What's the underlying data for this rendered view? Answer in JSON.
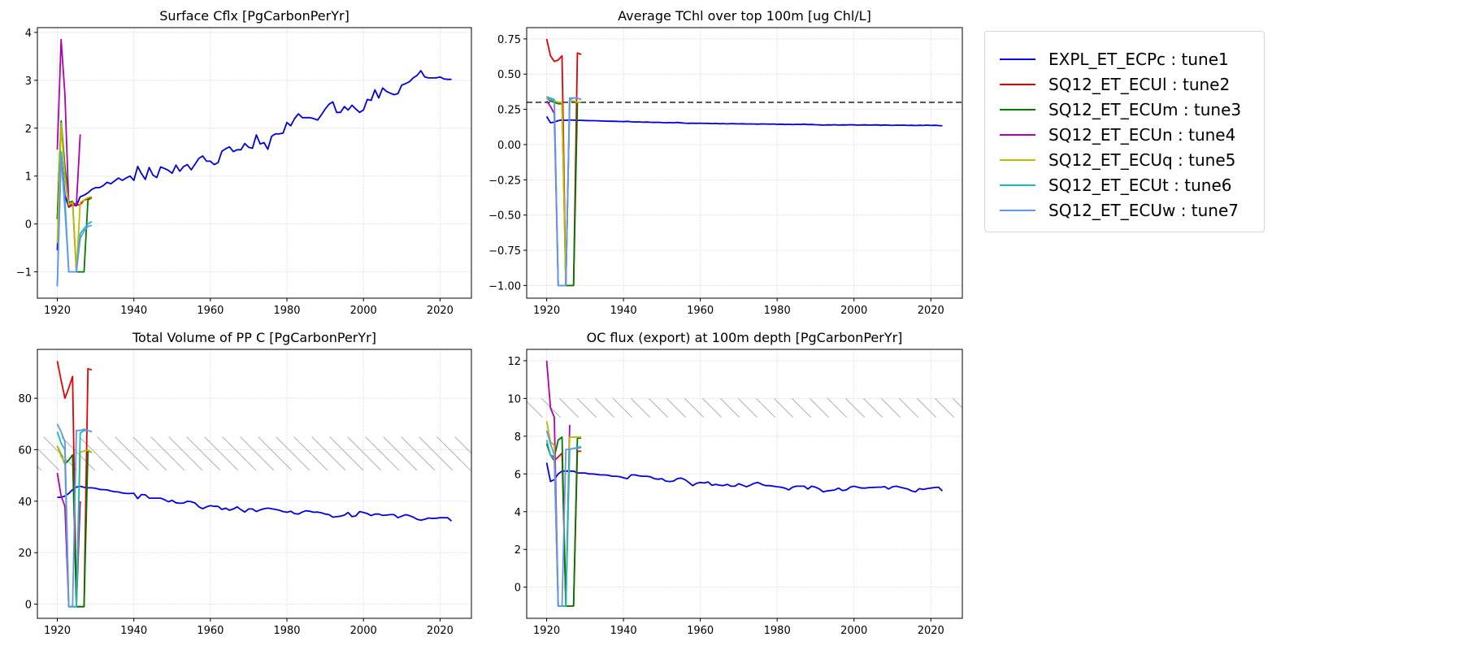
{
  "legend": {
    "items": [
      {
        "label": "EXPL_ET_ECPc : tune1",
        "color": "#0000e6"
      },
      {
        "label": "SQ12_ET_ECUl : tune2",
        "color": "#e60000"
      },
      {
        "label": "SQ12_ET_ECUm : tune3",
        "color": "#007a00"
      },
      {
        "label": "SQ12_ET_ECUn : tune4",
        "color": "#b000b0"
      },
      {
        "label": "SQ12_ET_ECUq : tune5",
        "color": "#bcbc00"
      },
      {
        "label": "SQ12_ET_ECUt : tune6",
        "color": "#17bcbc"
      },
      {
        "label": "SQ12_ET_ECUw : tune7",
        "color": "#6495ed"
      }
    ]
  },
  "chart_data": [
    {
      "type": "line",
      "title": "Surface Cflx [PgCarbonPerYr]",
      "xlim": [
        1914.8,
        2028.2
      ],
      "ylim": [
        -1.55,
        4.1
      ],
      "xticks": [
        1920,
        1940,
        1960,
        1980,
        2000,
        2020
      ],
      "xtick_labels": [
        "1920",
        "1940",
        "1960",
        "1980",
        "2000",
        "2020"
      ],
      "yticks": [
        -1,
        0,
        1,
        2,
        3,
        4
      ],
      "ytick_labels": [
        "−1",
        "0",
        "1",
        "2",
        "3",
        "4"
      ],
      "grid": true,
      "series": [
        {
          "name": "EXPL_ET_ECPc : tune1",
          "x_start": 1920,
          "values": [
            -0.55,
            1.5,
            0.6,
            0.35,
            0.4,
            0.38,
            0.57,
            0.6,
            0.65,
            0.72,
            0.76,
            0.76,
            0.8,
            0.87,
            0.84,
            0.9,
            0.96,
            0.91,
            0.96,
            1.0,
            0.91,
            1.2,
            1.05,
            0.93,
            1.18,
            1.02,
            0.97,
            1.19,
            1.16,
            1.12,
            1.06,
            1.23,
            1.1,
            1.2,
            1.24,
            1.13,
            1.25,
            1.37,
            1.42,
            1.31,
            1.31,
            1.24,
            1.28,
            1.52,
            1.57,
            1.61,
            1.51,
            1.55,
            1.55,
            1.68,
            1.6,
            1.58,
            1.86,
            1.67,
            1.7,
            1.56,
            1.83,
            1.88,
            1.88,
            1.9,
            2.12,
            2.05,
            2.2,
            2.3,
            2.22,
            2.22,
            2.22,
            2.2,
            2.17,
            2.28,
            2.4,
            2.5,
            2.55,
            2.33,
            2.33,
            2.45,
            2.38,
            2.48,
            2.4,
            2.33,
            2.38,
            2.6,
            2.58,
            2.8,
            2.63,
            2.84,
            2.77,
            2.73,
            2.7,
            2.72,
            2.9,
            2.93,
            2.97,
            3.05,
            3.1,
            3.2,
            3.07,
            3.05,
            3.05,
            3.05,
            3.07,
            3.03,
            3.02,
            3.02
          ]
        },
        {
          "name": "SQ12_ET_ECUl : tune2",
          "x_start": 1920,
          "values": [
            0.1,
            2.1,
            1.0,
            0.35,
            0.45,
            0.4,
            0.4,
            0.5,
            0.52,
            0.55
          ]
        },
        {
          "name": "SQ12_ET_ECUm : tune3",
          "x_start": 1920,
          "values": [
            0.1,
            2.15,
            1.2,
            0.45,
            0.47,
            -1,
            -1,
            -1,
            0.5,
            0.55
          ]
        },
        {
          "name": "SQ12_ET_ECUn : tune4",
          "x_start": 1920,
          "values": [
            1.55,
            3.85,
            2.7,
            0.4,
            0.38,
            0.4,
            1.87
          ]
        },
        {
          "name": "SQ12_ET_ECUq : tune5",
          "x_start": 1920,
          "values": [
            -0.4,
            2.1,
            1.0,
            0.4,
            0.45,
            -1,
            0.45,
            0.5,
            0.55,
            0.57
          ]
        },
        {
          "name": "SQ12_ET_ECUt : tune6",
          "x_start": 1920,
          "values": [
            -1.3,
            1.5,
            0.5,
            -1,
            -1,
            -1,
            -0.2,
            -0.1,
            0.0,
            0.05
          ]
        },
        {
          "name": "SQ12_ET_ECUw : tune7",
          "x_start": 1920,
          "values": [
            -1.3,
            1.4,
            0.3,
            -1,
            -1,
            -1,
            -0.3,
            -0.15,
            -0.05,
            -0.03
          ]
        }
      ]
    },
    {
      "type": "line",
      "title": "Average TChl over top 100m [ug Chl/L]",
      "xlim": [
        1914.8,
        2028.2
      ],
      "ylim": [
        -1.09,
        0.83
      ],
      "xticks": [
        1920,
        1940,
        1960,
        1980,
        2000,
        2020
      ],
      "xtick_labels": [
        "1920",
        "1940",
        "1960",
        "1980",
        "2000",
        "2020"
      ],
      "yticks": [
        -1.0,
        -0.75,
        -0.5,
        -0.25,
        0.0,
        0.25,
        0.5,
        0.75
      ],
      "ytick_labels": [
        "−1.00",
        "−0.75",
        "−0.50",
        "−0.25",
        "0.00",
        "0.25",
        "0.50",
        "0.75"
      ],
      "grid": true,
      "reference_line": {
        "y": 0.3,
        "style": "dashed"
      },
      "series": [
        {
          "name": "EXPL_ET_ECPc : tune1",
          "x_start": 1920,
          "values": [
            0.2,
            0.155,
            0.16,
            0.17,
            0.175,
            0.172,
            0.175,
            0.173,
            0.172,
            0.172,
            0.171,
            0.17,
            0.17,
            0.169,
            0.168,
            0.167,
            0.166,
            0.166,
            0.165,
            0.164,
            0.163,
            0.165,
            0.162,
            0.16,
            0.161,
            0.159,
            0.16,
            0.158,
            0.157,
            0.158,
            0.156,
            0.155,
            0.156,
            0.155,
            0.157,
            0.154,
            0.152,
            0.151,
            0.152,
            0.151,
            0.152,
            0.15,
            0.151,
            0.149,
            0.15,
            0.148,
            0.149,
            0.147,
            0.149,
            0.148,
            0.147,
            0.148,
            0.146,
            0.147,
            0.146,
            0.145,
            0.147,
            0.146,
            0.145,
            0.146,
            0.144,
            0.145,
            0.143,
            0.144,
            0.142,
            0.144,
            0.143,
            0.145,
            0.142,
            0.143,
            0.141,
            0.14,
            0.138,
            0.14,
            0.139,
            0.141,
            0.138,
            0.14,
            0.139,
            0.141,
            0.14,
            0.138,
            0.139,
            0.14,
            0.138,
            0.139,
            0.14,
            0.137,
            0.139,
            0.138,
            0.136,
            0.138,
            0.137,
            0.138,
            0.136,
            0.137,
            0.135,
            0.137,
            0.136,
            0.138,
            0.136,
            0.137,
            0.135,
            0.133
          ]
        },
        {
          "name": "SQ12_ET_ECUl : tune2",
          "x_start": 1920,
          "values": [
            0.75,
            0.63,
            0.59,
            0.6,
            0.63,
            -1,
            -1,
            -1,
            0.65,
            0.64
          ]
        },
        {
          "name": "SQ12_ET_ECUm : tune3",
          "x_start": 1920,
          "values": [
            0.33,
            0.31,
            0.3,
            0.29,
            0.29,
            -1,
            -1,
            -1,
            0.3,
            0.3
          ]
        },
        {
          "name": "SQ12_ET_ECUn : tune4",
          "x_start": 1920,
          "values": [
            0.31,
            0.27,
            0.22,
            -1,
            -1,
            -1,
            0.32
          ]
        },
        {
          "name": "SQ12_ET_ECUq : tune5",
          "x_start": 1920,
          "values": [
            0.33,
            0.32,
            0.31,
            0.3,
            0.3,
            -1,
            0.31,
            0.31,
            0.3,
            0.3
          ]
        },
        {
          "name": "SQ12_ET_ECUt : tune6",
          "x_start": 1920,
          "values": [
            0.34,
            0.33,
            0.32,
            -1,
            -1,
            -1,
            0.33,
            0.33,
            0.33,
            0.32
          ]
        },
        {
          "name": "SQ12_ET_ECUw : tune7",
          "x_start": 1920,
          "values": [
            0.34,
            0.32,
            0.31,
            -1,
            -1,
            -1,
            0.32,
            0.33,
            0.33,
            0.32
          ]
        }
      ]
    },
    {
      "type": "line",
      "title": "Total Volume of PP C [PgCarbonPerYr]",
      "xlim": [
        1914.8,
        2028.2
      ],
      "ylim": [
        -5.5,
        99
      ],
      "xticks": [
        1920,
        1940,
        1960,
        1980,
        2000,
        2020
      ],
      "xtick_labels": [
        "1920",
        "1940",
        "1960",
        "1980",
        "2000",
        "2020"
      ],
      "yticks": [
        0,
        20,
        40,
        60,
        80
      ],
      "ytick_labels": [
        "0",
        "20",
        "40",
        "60",
        "80"
      ],
      "grid": true,
      "target_band": {
        "ymin": 52,
        "ymax": 65
      },
      "series": [
        {
          "name": "EXPL_ET_ECPc : tune1",
          "x_start": 1920,
          "values": [
            41.5,
            41.5,
            42,
            43,
            44.5,
            45.5,
            45.8,
            45.4,
            45.2,
            45.2,
            45.0,
            44.6,
            44.5,
            44.4,
            44.0,
            43.7,
            43.6,
            43.2,
            43.0,
            43.0,
            43.1,
            41.0,
            42.6,
            42.5,
            41.2,
            41.2,
            41.2,
            41.2,
            40.6,
            39.8,
            40.3,
            39.4,
            39.2,
            39.3,
            40.0,
            39.8,
            39.3,
            37.8,
            37.1,
            37.8,
            38.3,
            38.0,
            38.0,
            36.8,
            37.3,
            36.5,
            37.0,
            37.8,
            36.7,
            35.8,
            37.0,
            37.0,
            36.0,
            36.6,
            37.1,
            37.3,
            37.1,
            36.8,
            36.5,
            36.0,
            35.7,
            36.1,
            35.2,
            35.0,
            35.8,
            36.3,
            36.1,
            35.7,
            35.8,
            35.5,
            35.0,
            34.8,
            33.8,
            34.0,
            34.2,
            34.6,
            35.6,
            34.0,
            34.3,
            36.0,
            35.6,
            35.2,
            34.4,
            35.0,
            35.0,
            34.5,
            34.6,
            34.8,
            34.8,
            33.6,
            34.2,
            34.8,
            34.4,
            33.8,
            33.0,
            32.6,
            33.0,
            33.5,
            33.3,
            33.4,
            33.6,
            33.6,
            33.6,
            32.3
          ]
        },
        {
          "name": "SQ12_ET_ECUl : tune2",
          "x_start": 1920,
          "values": [
            94.5,
            87,
            80,
            84,
            88.5,
            -1,
            -1,
            -1,
            91.5,
            91
          ]
        },
        {
          "name": "SQ12_ET_ECUm : tune3",
          "x_start": 1920,
          "values": [
            61.5,
            58,
            54.5,
            56,
            58,
            -1,
            -1,
            -1,
            59.5,
            59
          ]
        },
        {
          "name": "SQ12_ET_ECUn : tune4",
          "x_start": 1920,
          "values": [
            51,
            42,
            38,
            -1,
            -1,
            -1,
            40
          ]
        },
        {
          "name": "SQ12_ET_ECUq : tune5",
          "x_start": 1920,
          "values": [
            61.5,
            57.5,
            55,
            -1,
            -1,
            -1,
            59,
            59.5,
            59.8,
            59
          ]
        },
        {
          "name": "SQ12_ET_ECUt : tune6",
          "x_start": 1920,
          "values": [
            67,
            62.5,
            60,
            -1,
            -1,
            -1,
            66.5,
            67.5,
            67.5,
            67
          ]
        },
        {
          "name": "SQ12_ET_ECUw : tune7",
          "x_start": 1920,
          "values": [
            70,
            67,
            63,
            -1,
            -1,
            67.5,
            67.5,
            68,
            67.5,
            67
          ]
        }
      ]
    },
    {
      "type": "line",
      "title": "OC flux (export) at 100m depth [PgCarbonPerYr]",
      "xlim": [
        1914.8,
        2028.2
      ],
      "ylim": [
        -1.65,
        12.6
      ],
      "xticks": [
        1920,
        1940,
        1960,
        1980,
        2000,
        2020
      ],
      "xtick_labels": [
        "1920",
        "1940",
        "1960",
        "1980",
        "2000",
        "2020"
      ],
      "yticks": [
        0,
        2,
        4,
        6,
        8,
        10,
        12
      ],
      "ytick_labels": [
        "0",
        "2",
        "4",
        "6",
        "8",
        "10",
        "12"
      ],
      "grid": true,
      "target_band": {
        "ymin": 9,
        "ymax": 10
      },
      "series": [
        {
          "name": "EXPL_ET_ECPc : tune1",
          "x_start": 1920,
          "values": [
            6.6,
            5.6,
            5.7,
            6.0,
            6.15,
            6.15,
            6.15,
            6.15,
            6.05,
            6.05,
            6.05,
            6.0,
            6.0,
            5.98,
            5.95,
            5.95,
            5.93,
            5.88,
            5.88,
            5.86,
            5.8,
            5.75,
            5.95,
            5.95,
            5.9,
            5.88,
            5.88,
            5.85,
            5.75,
            5.72,
            5.75,
            5.62,
            5.6,
            5.62,
            5.75,
            5.78,
            5.7,
            5.55,
            5.38,
            5.5,
            5.55,
            5.52,
            5.58,
            5.4,
            5.45,
            5.4,
            5.38,
            5.45,
            5.35,
            5.35,
            5.48,
            5.4,
            5.32,
            5.4,
            5.5,
            5.55,
            5.45,
            5.38,
            5.38,
            5.35,
            5.32,
            5.3,
            5.25,
            5.15,
            5.3,
            5.35,
            5.35,
            5.35,
            5.2,
            5.35,
            5.3,
            5.2,
            5.05,
            5.1,
            5.12,
            5.15,
            5.25,
            5.12,
            5.15,
            5.3,
            5.35,
            5.3,
            5.25,
            5.25,
            5.28,
            5.28,
            5.3,
            5.3,
            5.33,
            5.2,
            5.32,
            5.35,
            5.3,
            5.25,
            5.2,
            5.1,
            5.05,
            5.22,
            5.18,
            5.22,
            5.25,
            5.28,
            5.3,
            5.1
          ]
        },
        {
          "name": "SQ12_ET_ECUl : tune2",
          "x_start": 1920,
          "values": [
            7.6,
            7.0,
            6.7,
            6.9,
            7.1,
            -1,
            -1,
            -1,
            7.2,
            7.2
          ]
        },
        {
          "name": "SQ12_ET_ECUm : tune3",
          "x_start": 1920,
          "values": [
            7.6,
            7.0,
            6.9,
            7.8,
            7.95,
            -1,
            -1,
            -1,
            7.9,
            7.9
          ]
        },
        {
          "name": "SQ12_ET_ECUn : tune4",
          "x_start": 1920,
          "values": [
            12.0,
            9.5,
            9.0,
            -1,
            -1,
            -1,
            8.6
          ]
        },
        {
          "name": "SQ12_ET_ECUq : tune5",
          "x_start": 1920,
          "values": [
            8.8,
            7.7,
            7.5,
            -1,
            -1,
            -1,
            7.95,
            7.95,
            7.95,
            7.95
          ]
        },
        {
          "name": "SQ12_ET_ECUt : tune6",
          "x_start": 1920,
          "values": [
            7.8,
            7.0,
            6.8,
            -1,
            -1,
            -1,
            7.3,
            7.35,
            7.4,
            7.45
          ]
        },
        {
          "name": "SQ12_ET_ECUw : tune7",
          "x_start": 1920,
          "values": [
            8.3,
            7.6,
            7.0,
            -1,
            -1,
            7.3,
            7.3,
            7.35,
            7.35,
            7.4
          ]
        }
      ]
    }
  ]
}
